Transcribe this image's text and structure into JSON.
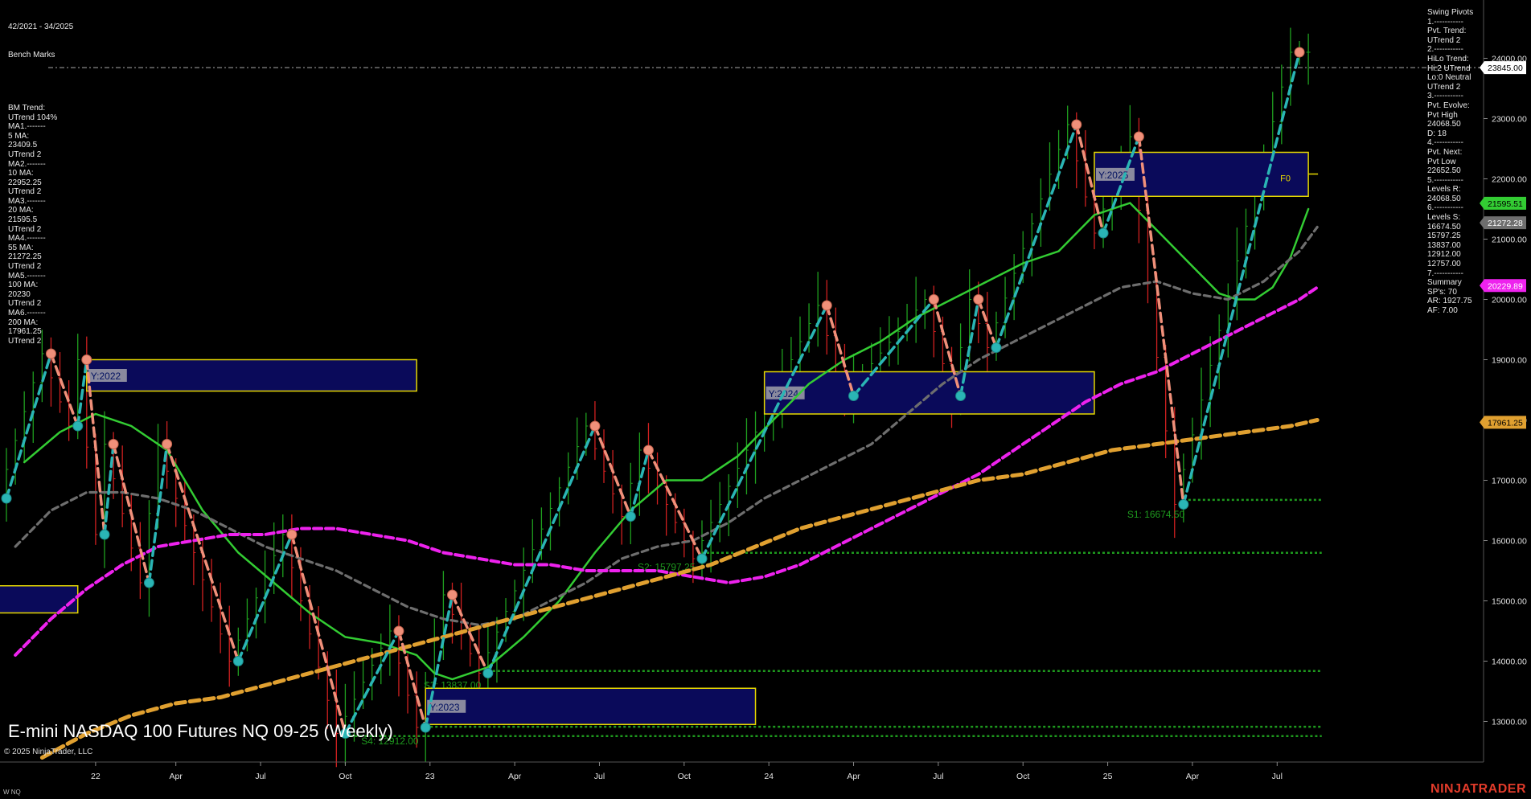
{
  "header": {
    "date_range": "42/2021 - 34/2025",
    "bench_marks_title": "Bench Marks"
  },
  "left_panel_lines": [
    "BM Trend:",
    "UTrend 104%",
    "MA1.-------",
    "5 MA:",
    "23409.5",
    "UTrend 2",
    "MA2.-------",
    "10 MA:",
    "22952.25",
    "UTrend 2",
    "MA3.-------",
    "20 MA:",
    "21595.5",
    "UTrend 2",
    "MA4.-------",
    "55 MA:",
    "21272.25",
    "UTrend 2",
    "MA5.-------",
    "100 MA:",
    "20230",
    "UTrend 2",
    "MA6.-------",
    "200 MA:",
    "17961.25",
    "UTrend 2"
  ],
  "right_panel_lines": [
    "Swing Pivots",
    "1.-----------",
    "Pvt. Trend:",
    "UTrend 2",
    "2.-----------",
    "HiLo Trend:",
    "Hi:2 UTrend",
    "Lo:0 Neutral",
    "UTrend 2",
    "3.-----------",
    "Pvt. Evolve:",
    "Pvt High",
    "24068.50",
    "D: 18",
    "4.-----------",
    "Pvt. Next:",
    "Pvt Low",
    "22652.50",
    "5.-----------",
    "Levels R:",
    "24068.50",
    "6.-----------",
    "Levels S:",
    "16674.50",
    "15797.25",
    "13837.00",
    "12912.00",
    "12757.00",
    "7.-----------",
    "Summary",
    "SP's: 70",
    "AR: 1927.75",
    "AF: 7.00"
  ],
  "title": "E-mini NASDAQ 100 Futures NQ 09-25 (Weekly)",
  "copyright": "© 2025 NinjaTrader, LLC",
  "symbol_code": "W NQ",
  "brand": "NINJATRADER",
  "colors": {
    "background": "#000000",
    "ma20": "#33cc33",
    "ma55": "#6e6e6e",
    "ma100": "#ee22ee",
    "ma200": "#e0a030",
    "pivot_up": "#2ab5b5",
    "pivot_down": "#f0907a",
    "bar_up": "#1fa01f",
    "bar_down": "#d02020",
    "support": "#1e9a1e",
    "year_box_fill": "#0a0a5a",
    "year_box_border": "#e6d800"
  },
  "chart_data": {
    "type": "line",
    "title": "E-mini NASDAQ 100 Futures NQ 09-25 (Weekly)",
    "ylim": [
      12300,
      24800
    ],
    "xlim": [
      0,
      156
    ],
    "y_ticks": [
      "24000.00",
      "23000.00",
      "22000.00",
      "21000.00",
      "20000.00",
      "19000.00",
      "18000.00",
      "17000.00",
      "16000.00",
      "15000.00",
      "14000.00",
      "13000.00"
    ],
    "y_tick_values": [
      24000,
      23000,
      22000,
      21000,
      20000,
      19000,
      18000,
      17000,
      16000,
      15000,
      14000,
      13000
    ],
    "x_ticks": [
      {
        "label": "22",
        "x": 10
      },
      {
        "label": "Apr",
        "x": 19
      },
      {
        "label": "Jul",
        "x": 28.5
      },
      {
        "label": "Oct",
        "x": 38
      },
      {
        "label": "23",
        "x": 47.5
      },
      {
        "label": "Apr",
        "x": 57
      },
      {
        "label": "Jul",
        "x": 66.5
      },
      {
        "label": "Oct",
        "x": 76
      },
      {
        "label": "24",
        "x": 85.5
      },
      {
        "label": "Apr",
        "x": 95
      },
      {
        "label": "Jul",
        "x": 104.5
      },
      {
        "label": "Oct",
        "x": 114
      },
      {
        "label": "25",
        "x": 123.5
      },
      {
        "label": "Apr",
        "x": 133
      },
      {
        "label": "Jul",
        "x": 142.5
      }
    ],
    "price_markers": [
      {
        "label": "23845.00",
        "value": 23845,
        "color": "#ffffff",
        "text_color": "#000000"
      },
      {
        "label": "21595.51",
        "value": 21595.5,
        "color": "#33cc33",
        "text_color": "#000000"
      },
      {
        "label": "21272.28",
        "value": 21272.25,
        "color": "#6e6e6e",
        "text_color": "#ffffff"
      },
      {
        "label": "20229.89",
        "value": 20229.9,
        "color": "#ee22ee",
        "text_color": "#ffffff"
      },
      {
        "label": "17961.25",
        "value": 17961.25,
        "color": "#e0a030",
        "text_color": "#000000"
      }
    ],
    "last_price_line": 23845,
    "series": [
      {
        "name": "20 MA",
        "style": "solid",
        "points": [
          [
            2,
            17300
          ],
          [
            6,
            17800
          ],
          [
            10,
            18100
          ],
          [
            14,
            17900
          ],
          [
            18,
            17500
          ],
          [
            22,
            16500
          ],
          [
            26,
            15800
          ],
          [
            30,
            15300
          ],
          [
            34,
            14800
          ],
          [
            38,
            14400
          ],
          [
            42,
            14300
          ],
          [
            46,
            14100
          ],
          [
            48,
            13800
          ],
          [
            50,
            13700
          ],
          [
            54,
            13900
          ],
          [
            58,
            14400
          ],
          [
            62,
            15000
          ],
          [
            66,
            15800
          ],
          [
            70,
            16500
          ],
          [
            74,
            17000
          ],
          [
            78,
            17000
          ],
          [
            82,
            17400
          ],
          [
            86,
            18000
          ],
          [
            90,
            18600
          ],
          [
            94,
            19000
          ],
          [
            98,
            19300
          ],
          [
            102,
            19700
          ],
          [
            106,
            20000
          ],
          [
            110,
            20300
          ],
          [
            114,
            20600
          ],
          [
            118,
            20800
          ],
          [
            122,
            21400
          ],
          [
            126,
            21600
          ],
          [
            128,
            21300
          ],
          [
            130,
            21000
          ],
          [
            132,
            20700
          ],
          [
            134,
            20400
          ],
          [
            136,
            20100
          ],
          [
            138,
            20000
          ],
          [
            140,
            20000
          ],
          [
            142,
            20200
          ],
          [
            144,
            20700
          ],
          [
            146,
            21500
          ]
        ]
      },
      {
        "name": "55 MA",
        "style": "dashed",
        "points": [
          [
            1,
            15900
          ],
          [
            5,
            16500
          ],
          [
            9,
            16800
          ],
          [
            13,
            16800
          ],
          [
            17,
            16700
          ],
          [
            21,
            16500
          ],
          [
            25,
            16200
          ],
          [
            29,
            15900
          ],
          [
            33,
            15700
          ],
          [
            37,
            15500
          ],
          [
            41,
            15200
          ],
          [
            45,
            14900
          ],
          [
            49,
            14700
          ],
          [
            53,
            14600
          ],
          [
            57,
            14700
          ],
          [
            61,
            15000
          ],
          [
            65,
            15300
          ],
          [
            69,
            15700
          ],
          [
            73,
            15900
          ],
          [
            77,
            16000
          ],
          [
            81,
            16300
          ],
          [
            85,
            16700
          ],
          [
            89,
            17000
          ],
          [
            93,
            17300
          ],
          [
            97,
            17600
          ],
          [
            101,
            18100
          ],
          [
            105,
            18600
          ],
          [
            109,
            19000
          ],
          [
            113,
            19300
          ],
          [
            117,
            19600
          ],
          [
            121,
            19900
          ],
          [
            125,
            20200
          ],
          [
            129,
            20300
          ],
          [
            133,
            20100
          ],
          [
            137,
            20000
          ],
          [
            141,
            20300
          ],
          [
            145,
            20800
          ],
          [
            147,
            21200
          ]
        ]
      },
      {
        "name": "100 MA",
        "style": "dashed",
        "points": [
          [
            1,
            14100
          ],
          [
            5,
            14700
          ],
          [
            9,
            15200
          ],
          [
            13,
            15600
          ],
          [
            17,
            15900
          ],
          [
            21,
            16000
          ],
          [
            25,
            16100
          ],
          [
            29,
            16100
          ],
          [
            33,
            16200
          ],
          [
            37,
            16200
          ],
          [
            41,
            16100
          ],
          [
            45,
            16000
          ],
          [
            49,
            15800
          ],
          [
            53,
            15700
          ],
          [
            57,
            15600
          ],
          [
            61,
            15600
          ],
          [
            65,
            15500
          ],
          [
            69,
            15500
          ],
          [
            73,
            15500
          ],
          [
            77,
            15400
          ],
          [
            81,
            15300
          ],
          [
            85,
            15400
          ],
          [
            89,
            15600
          ],
          [
            93,
            15900
          ],
          [
            97,
            16200
          ],
          [
            101,
            16500
          ],
          [
            105,
            16800
          ],
          [
            109,
            17100
          ],
          [
            113,
            17500
          ],
          [
            117,
            17900
          ],
          [
            121,
            18300
          ],
          [
            125,
            18600
          ],
          [
            129,
            18800
          ],
          [
            133,
            19100
          ],
          [
            137,
            19400
          ],
          [
            141,
            19700
          ],
          [
            145,
            20000
          ],
          [
            147,
            20200
          ]
        ]
      },
      {
        "name": "200 MA",
        "style": "dashed",
        "points": [
          [
            4,
            12400
          ],
          [
            9,
            12800
          ],
          [
            14,
            13100
          ],
          [
            19,
            13300
          ],
          [
            24,
            13400
          ],
          [
            29,
            13600
          ],
          [
            34,
            13800
          ],
          [
            39,
            14000
          ],
          [
            44,
            14200
          ],
          [
            49,
            14400
          ],
          [
            54,
            14600
          ],
          [
            59,
            14800
          ],
          [
            64,
            15000
          ],
          [
            69,
            15200
          ],
          [
            74,
            15400
          ],
          [
            79,
            15600
          ],
          [
            84,
            15900
          ],
          [
            89,
            16200
          ],
          [
            94,
            16400
          ],
          [
            99,
            16600
          ],
          [
            104,
            16800
          ],
          [
            109,
            17000
          ],
          [
            114,
            17100
          ],
          [
            119,
            17300
          ],
          [
            124,
            17500
          ],
          [
            129,
            17600
          ],
          [
            134,
            17700
          ],
          [
            139,
            17800
          ],
          [
            144,
            17900
          ],
          [
            147,
            18000
          ]
        ]
      }
    ],
    "swing_pivots": [
      [
        0,
        16700
      ],
      [
        5,
        19100
      ],
      [
        8,
        17900
      ],
      [
        9,
        19000
      ],
      [
        11,
        16100
      ],
      [
        12,
        17600
      ],
      [
        16,
        15300
      ],
      [
        18,
        17600
      ],
      [
        26,
        14000
      ],
      [
        32,
        16100
      ],
      [
        38,
        12800
      ],
      [
        44,
        14500
      ],
      [
        47,
        12900
      ],
      [
        50,
        15100
      ],
      [
        54,
        13800
      ],
      [
        66,
        17900
      ],
      [
        70,
        16400
      ],
      [
        72,
        17500
      ],
      [
        78,
        15700
      ],
      [
        92,
        19900
      ],
      [
        95,
        18400
      ],
      [
        104,
        20000
      ],
      [
        107,
        18400
      ],
      [
        109,
        20000
      ],
      [
        111,
        19200
      ],
      [
        120,
        22900
      ],
      [
        123,
        21100
      ],
      [
        127,
        22700
      ],
      [
        132,
        16600
      ],
      [
        145,
        24100
      ]
    ],
    "support_lines": [
      {
        "value": 16674.5,
        "x_start": 132,
        "label": "S1: 16674.50"
      },
      {
        "value": 15797.25,
        "x_start": 78,
        "label": "S2: 15797.25"
      },
      {
        "value": 13837.0,
        "x_start": 54,
        "label": "S3: 13837.00"
      },
      {
        "value": 12912.0,
        "x_start": 47,
        "label": "S4: 12912.00"
      },
      {
        "value": 12757.0,
        "x_start": 38,
        "label": ""
      }
    ],
    "year_boxes": [
      {
        "label": "Y:2022",
        "x1": 9,
        "x2": 46,
        "y_top": 19000,
        "y_bottom": 18480
      },
      {
        "label": "",
        "x1": -2,
        "x2": 8,
        "y_top": 15250,
        "y_bottom": 14800
      },
      {
        "label": "Y:2023",
        "x1": 47,
        "x2": 84,
        "y_top": 13550,
        "y_bottom": 12950
      },
      {
        "label": "Y:2024",
        "x1": 85,
        "x2": 122,
        "y_top": 18800,
        "y_bottom": 18100
      },
      {
        "label": "Y:2025",
        "x1": 122,
        "x2": 146,
        "y_top": 22440,
        "y_bottom": 21710,
        "inner_label": "F0"
      }
    ]
  }
}
